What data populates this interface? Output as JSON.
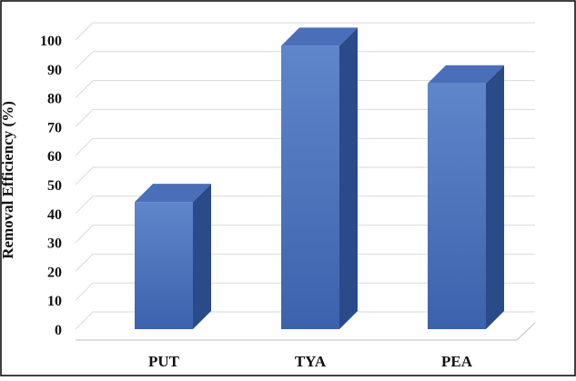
{
  "chart_data": {
    "type": "bar",
    "categories": [
      "PUT",
      "TYA",
      "PEA"
    ],
    "series": [
      {
        "values": [
          44,
          98,
          85
        ]
      }
    ],
    "title": "",
    "xlabel": "",
    "ylabel": "Removal Efficiency (%)",
    "ylim": [
      0,
      100
    ],
    "yticks": [
      0,
      10,
      20,
      30,
      40,
      50,
      60,
      70,
      80,
      90,
      100
    ],
    "grid": true,
    "legend": "none",
    "bar_style": "3d",
    "colors": {
      "bar_front_top": "#5f86cb",
      "bar_front_bottom": "#3d62ad",
      "bar_side": "#2a4a8a",
      "bar_top": "#4a6fb8",
      "grid": "#d9d9d9",
      "axis": "#bfbfbf",
      "border": "#000000"
    }
  }
}
